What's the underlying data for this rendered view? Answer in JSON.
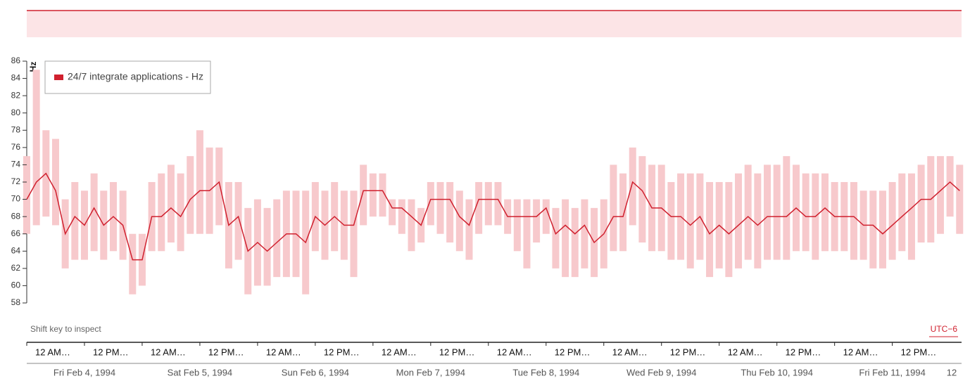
{
  "chart_data": {
    "type": "line",
    "y_label": "Hz",
    "legend": "top-left",
    "hint": "Shift key to inspect",
    "timezone": "UTC−6",
    "ylim": [
      58,
      86
    ],
    "yticks": [
      58,
      60,
      62,
      64,
      66,
      68,
      70,
      72,
      74,
      76,
      78,
      80,
      82,
      84,
      86
    ],
    "xlim": [
      "1994-02-04 00:00",
      "1994-02-12 02:24"
    ],
    "xticks": [
      {
        "value": "1994-02-04 00:00",
        "label": "12 AM…"
      },
      {
        "value": "1994-02-04 12:00",
        "label": "12 PM…"
      },
      {
        "value": "1994-02-05 00:00",
        "label": "12 AM…"
      },
      {
        "value": "1994-02-05 12:00",
        "label": "12 PM…"
      },
      {
        "value": "1994-02-06 00:00",
        "label": "12 AM…"
      },
      {
        "value": "1994-02-06 12:00",
        "label": "12 PM…"
      },
      {
        "value": "1994-02-07 00:00",
        "label": "12 AM…"
      },
      {
        "value": "1994-02-07 12:00",
        "label": "12 PM…"
      },
      {
        "value": "1994-02-08 00:00",
        "label": "12 AM…"
      },
      {
        "value": "1994-02-08 12:00",
        "label": "12 PM…"
      },
      {
        "value": "1994-02-09 00:00",
        "label": "12 AM…"
      },
      {
        "value": "1994-02-09 12:00",
        "label": "12 PM…"
      },
      {
        "value": "1994-02-10 00:00",
        "label": "12 AM…"
      },
      {
        "value": "1994-02-10 12:00",
        "label": "12 PM…"
      },
      {
        "value": "1994-02-11 00:00",
        "label": "12 AM…"
      },
      {
        "value": "1994-02-11 12:00",
        "label": "12 PM…"
      }
    ],
    "xticks_days": [
      {
        "value": "1994-02-04 12:00",
        "label": "Fri Feb 4, 1994"
      },
      {
        "value": "1994-02-05 12:00",
        "label": "Sat Feb 5, 1994"
      },
      {
        "value": "1994-02-06 12:00",
        "label": "Sun Feb 6, 1994"
      },
      {
        "value": "1994-02-07 12:00",
        "label": "Mon Feb 7, 1994"
      },
      {
        "value": "1994-02-08 12:00",
        "label": "Tue Feb 8, 1994"
      },
      {
        "value": "1994-02-09 12:00",
        "label": "Wed Feb 9, 1994"
      },
      {
        "value": "1994-02-10 12:00",
        "label": "Thu Feb 10, 1994"
      },
      {
        "value": "1994-02-11 12:00",
        "label": "Fri Feb 11, 1994"
      },
      {
        "value": "1994-02-12 12:00",
        "label": "12"
      }
    ],
    "x": [
      "1994-02-04 00:00",
      "1994-02-04 02:00",
      "1994-02-04 04:00",
      "1994-02-04 06:00",
      "1994-02-04 08:00",
      "1994-02-04 10:00",
      "1994-02-04 12:00",
      "1994-02-04 14:00",
      "1994-02-04 16:00",
      "1994-02-04 18:00",
      "1994-02-04 20:00",
      "1994-02-04 22:00",
      "1994-02-05 00:00",
      "1994-02-05 02:00",
      "1994-02-05 04:00",
      "1994-02-05 06:00",
      "1994-02-05 08:00",
      "1994-02-05 10:00",
      "1994-02-05 12:00",
      "1994-02-05 14:00",
      "1994-02-05 16:00",
      "1994-02-05 18:00",
      "1994-02-05 20:00",
      "1994-02-05 22:00",
      "1994-02-06 00:00",
      "1994-02-06 02:00",
      "1994-02-06 04:00",
      "1994-02-06 06:00",
      "1994-02-06 08:00",
      "1994-02-06 10:00",
      "1994-02-06 12:00",
      "1994-02-06 14:00",
      "1994-02-06 16:00",
      "1994-02-06 18:00",
      "1994-02-06 20:00",
      "1994-02-06 22:00",
      "1994-02-07 00:00",
      "1994-02-07 02:00",
      "1994-02-07 04:00",
      "1994-02-07 06:00",
      "1994-02-07 08:00",
      "1994-02-07 10:00",
      "1994-02-07 12:00",
      "1994-02-07 14:00",
      "1994-02-07 16:00",
      "1994-02-07 18:00",
      "1994-02-07 20:00",
      "1994-02-07 22:00",
      "1994-02-08 00:00",
      "1994-02-08 02:00",
      "1994-02-08 04:00",
      "1994-02-08 06:00",
      "1994-02-08 08:00",
      "1994-02-08 10:00",
      "1994-02-08 12:00",
      "1994-02-08 14:00",
      "1994-02-08 16:00",
      "1994-02-08 18:00",
      "1994-02-08 20:00",
      "1994-02-08 22:00",
      "1994-02-09 00:00",
      "1994-02-09 02:00",
      "1994-02-09 04:00",
      "1994-02-09 06:00",
      "1994-02-09 08:00",
      "1994-02-09 10:00",
      "1994-02-09 12:00",
      "1994-02-09 14:00",
      "1994-02-09 16:00",
      "1994-02-09 18:00",
      "1994-02-09 20:00",
      "1994-02-09 22:00",
      "1994-02-10 00:00",
      "1994-02-10 02:00",
      "1994-02-10 04:00",
      "1994-02-10 06:00",
      "1994-02-10 08:00",
      "1994-02-10 10:00",
      "1994-02-10 12:00",
      "1994-02-10 14:00",
      "1994-02-10 16:00",
      "1994-02-10 18:00",
      "1994-02-10 20:00",
      "1994-02-10 22:00",
      "1994-02-11 00:00",
      "1994-02-11 02:00",
      "1994-02-11 04:00",
      "1994-02-11 06:00",
      "1994-02-11 08:00",
      "1994-02-11 10:00",
      "1994-02-11 12:00",
      "1994-02-11 14:00",
      "1994-02-11 16:00",
      "1994-02-11 18:00",
      "1994-02-11 20:00",
      "1994-02-11 22:00",
      "1994-02-12 00:00",
      "1994-02-12 02:00"
    ],
    "series": [
      {
        "name": "24/7 integrate applications - Hz",
        "color": "#d0202e",
        "band_color": "#f7c9cc",
        "values": [
          70,
          72,
          73,
          71,
          66,
          68,
          67,
          69,
          67,
          68,
          67,
          63,
          63,
          68,
          68,
          69,
          68,
          70,
          71,
          71,
          72,
          67,
          68,
          64,
          65,
          64,
          65,
          66,
          66,
          65,
          68,
          67,
          68,
          67,
          67,
          71,
          71,
          71,
          69,
          69,
          68,
          67,
          70,
          70,
          70,
          68,
          67,
          70,
          70,
          70,
          68,
          68,
          68,
          68,
          69,
          66,
          67,
          66,
          67,
          65,
          66,
          68,
          68,
          72,
          71,
          69,
          69,
          68,
          68,
          67,
          68,
          66,
          67,
          66,
          67,
          68,
          67,
          68,
          68,
          68,
          69,
          68,
          68,
          69,
          68,
          68,
          68,
          67,
          67,
          66,
          67,
          68,
          69,
          70,
          70,
          71,
          72,
          71
        ],
        "low": [
          66,
          67,
          68,
          67,
          62,
          63,
          63,
          64,
          63,
          64,
          63,
          59,
          60,
          64,
          64,
          65,
          64,
          66,
          66,
          66,
          67,
          62,
          63,
          59,
          60,
          60,
          61,
          61,
          61,
          59,
          64,
          63,
          64,
          63,
          61,
          67,
          68,
          68,
          67,
          66,
          64,
          65,
          67,
          66,
          65,
          64,
          63,
          66,
          67,
          67,
          66,
          64,
          62,
          65,
          66,
          62,
          61,
          61,
          62,
          61,
          62,
          64,
          64,
          67,
          65,
          64,
          64,
          63,
          63,
          62,
          63,
          61,
          62,
          61,
          62,
          63,
          62,
          63,
          63,
          63,
          64,
          64,
          63,
          64,
          64,
          64,
          63,
          63,
          62,
          62,
          63,
          64,
          63,
          65,
          65,
          66,
          68,
          66
        ],
        "high": [
          75,
          85,
          78,
          77,
          70,
          72,
          71,
          73,
          71,
          72,
          71,
          66,
          66,
          72,
          73,
          74,
          73,
          75,
          78,
          76,
          76,
          72,
          72,
          69,
          70,
          69,
          70,
          71,
          71,
          71,
          72,
          71,
          72,
          71,
          71,
          74,
          73,
          73,
          70,
          70,
          70,
          69,
          72,
          72,
          72,
          71,
          70,
          72,
          72,
          72,
          70,
          70,
          70,
          70,
          70,
          69,
          70,
          69,
          70,
          69,
          70,
          74,
          73,
          76,
          75,
          74,
          74,
          72,
          73,
          73,
          73,
          72,
          72,
          72,
          73,
          74,
          73,
          74,
          74,
          75,
          74,
          73,
          73,
          73,
          72,
          72,
          72,
          71,
          71,
          71,
          72,
          73,
          73,
          74,
          75,
          75,
          75,
          74
        ]
      }
    ]
  }
}
